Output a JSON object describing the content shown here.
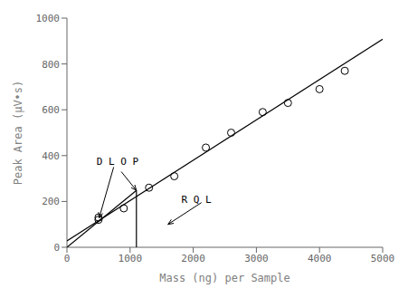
{
  "chart_data": {
    "type": "scatter",
    "xlabel": "Mass (ng) per Sample",
    "ylabel": "Peak Area (μV•s)",
    "x": [
      500,
      500,
      900,
      1300,
      1700,
      2200,
      2600,
      3100,
      3500,
      4000,
      4400
    ],
    "values": [
      120,
      130,
      170,
      260,
      310,
      435,
      500,
      590,
      630,
      690,
      770
    ],
    "color": "black",
    "marker": "circle",
    "lines": [
      {
        "x": [
          0,
          5000
        ],
        "y": [
          28,
          908
        ],
        "color": "black"
      },
      {
        "x": [
          0,
          1100
        ],
        "y": [
          0,
          248
        ],
        "color": "black"
      },
      {
        "x": [
          1100,
          1100
        ],
        "y": [
          0,
          248
        ],
        "color": "black"
      }
    ],
    "annotations": [
      {
        "text": "D L O P",
        "x": 800,
        "y": 360,
        "arrows": [
          {
            "from": [
              740,
              350
            ],
            "to": [
              510,
              128
            ]
          },
          {
            "from": [
              860,
              330
            ],
            "to": [
              1100,
              248
            ]
          }
        ]
      },
      {
        "text": "R Q L",
        "x": 2050,
        "y": 195,
        "arrows": [
          {
            "from": [
              2130,
              195
            ],
            "to": [
              1600,
              100
            ]
          }
        ]
      }
    ],
    "xlim": [
      0,
      5000
    ],
    "ylim": [
      0,
      1000
    ],
    "xticks": [
      0,
      1000,
      2000,
      3000,
      4000,
      5000
    ],
    "yticks": [
      0,
      200,
      400,
      600,
      800,
      1000
    ],
    "grid": false
  }
}
